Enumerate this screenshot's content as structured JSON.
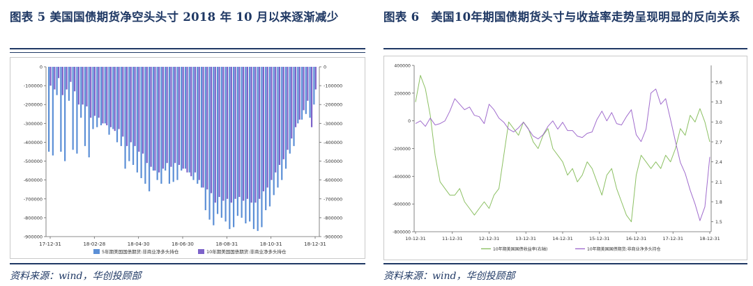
{
  "figures": [
    {
      "title": "图表 5 美国国债期货净空头头寸 2018 年 10 月以来逐渐减少",
      "source": "资料来源：wind，华创投顾部",
      "chart_data": {
        "type": "bar",
        "x_ticks": [
          "17-12-31",
          "18-02-28",
          "18-04-30",
          "18-06-30",
          "18-08-31",
          "18-10-31",
          "18-12-31"
        ],
        "y_ticks": [
          "0",
          "-100000",
          "-200000",
          "-300000",
          "-400000",
          "-500000",
          "-600000",
          "-700000",
          "-800000",
          "-900000"
        ],
        "ylim": [
          -900000,
          0
        ],
        "legend_position": "bottom",
        "series": [
          {
            "name": "5年期美国国债期货:非商业净多头持仓",
            "color": "#5b8fd6",
            "values": [
              -450000,
              -470000,
              -150000,
              -450000,
              -500000,
              -180000,
              -440000,
              -460000,
              -270000,
              -420000,
              -480000,
              -330000,
              -320000,
              -310000,
              -300000,
              -360000,
              -330000,
              -400000,
              -420000,
              -540000,
              -500000,
              -520000,
              -560000,
              -590000,
              -620000,
              -660000,
              -550000,
              -600000,
              -620000,
              -550000,
              -620000,
              -610000,
              -600000,
              -550000,
              -540000,
              -560000,
              -600000,
              -620000,
              -640000,
              -760000,
              -810000,
              -840000,
              -780000,
              -800000,
              -820000,
              -860000,
              -850000,
              -790000,
              -800000,
              -830000,
              -820000,
              -860000,
              -870000,
              -850000,
              -760000,
              -740000,
              -680000,
              -640000,
              -600000,
              -540000,
              -460000,
              -420000,
              -300000,
              -280000,
              -250000,
              -270000,
              -200000
            ]
          },
          {
            "name": "10年期美国国债期货:非商业净多头持仓",
            "color": "#7d63c9",
            "values": [
              -100000,
              -120000,
              -60000,
              -150000,
              -120000,
              -80000,
              -130000,
              -200000,
              -200000,
              -210000,
              -270000,
              -260000,
              -270000,
              -300000,
              -310000,
              -320000,
              -340000,
              -330000,
              -370000,
              -420000,
              -400000,
              -420000,
              -450000,
              -460000,
              -510000,
              -530000,
              -550000,
              -560000,
              -540000,
              -510000,
              -530000,
              -510000,
              -520000,
              -540000,
              -560000,
              -580000,
              -560000,
              -600000,
              -640000,
              -650000,
              -670000,
              -720000,
              -690000,
              -710000,
              -700000,
              -720000,
              -700000,
              -690000,
              -710000,
              -700000,
              -720000,
              -720000,
              -700000,
              -660000,
              -640000,
              -600000,
              -560000,
              -520000,
              -490000,
              -440000,
              -380000,
              -320000,
              -280000,
              -230000,
              -180000,
              -320000,
              -120000
            ]
          }
        ]
      }
    },
    {
      "title": "图表 6　美国10年期国债期货头寸与收益率走势呈现明显的反向关系",
      "source": "资料来源：wind，华创投顾部",
      "chart_data": {
        "type": "line",
        "x_ticks": [
          "10-12-31",
          "11-12-31",
          "12-12-31",
          "13-12-31",
          "14-12-31",
          "15-12-31",
          "16-12-31",
          "17-12-31",
          "18-12-31"
        ],
        "y_left_ticks": [
          "400000",
          "200000",
          "0",
          "-200000",
          "-400000",
          "-600000",
          "-800000"
        ],
        "y_right_ticks": [
          "3.6",
          "3.3",
          "3.0",
          "2.7",
          "2.4",
          "2.1",
          "1.8",
          "1.5"
        ],
        "ylim_left": [
          -800000,
          400000
        ],
        "ylim_right": [
          1.35,
          3.85
        ],
        "legend_position": "bottom",
        "series": [
          {
            "name": "10年期美国国债收益率(右轴)",
            "color": "#8cc063",
            "axis": "right",
            "values": [
              3.3,
              3.7,
              3.5,
              3.1,
              2.5,
              2.1,
              2.0,
              1.9,
              1.9,
              2.0,
              1.8,
              1.7,
              1.6,
              1.7,
              1.8,
              1.7,
              1.9,
              2.0,
              2.5,
              3.0,
              2.9,
              2.8,
              3.0,
              2.9,
              2.7,
              2.6,
              2.8,
              2.9,
              2.6,
              2.5,
              2.4,
              2.2,
              2.3,
              2.1,
              2.2,
              2.4,
              2.3,
              2.1,
              1.9,
              2.2,
              2.3,
              2.0,
              1.8,
              1.6,
              1.5,
              2.2,
              2.5,
              2.4,
              2.3,
              2.4,
              2.3,
              2.5,
              2.4,
              2.6,
              2.9,
              2.8,
              3.1,
              3.0,
              3.2,
              3.0,
              2.7
            ]
          },
          {
            "name": "10年期美国国债期货:非商业净多头持仓",
            "color": "#a06ccd",
            "axis": "left",
            "values": [
              -20000,
              0,
              -40000,
              20000,
              -30000,
              -20000,
              0,
              70000,
              160000,
              120000,
              80000,
              100000,
              40000,
              30000,
              -20000,
              120000,
              80000,
              20000,
              -10000,
              -60000,
              -80000,
              -50000,
              -10000,
              -60000,
              -110000,
              -130000,
              -100000,
              -40000,
              0,
              -60000,
              -10000,
              -70000,
              -70000,
              -110000,
              -120000,
              -90000,
              -80000,
              10000,
              70000,
              0,
              60000,
              -20000,
              -30000,
              30000,
              80000,
              -100000,
              -150000,
              -60000,
              200000,
              230000,
              120000,
              160000,
              10000,
              -150000,
              -300000,
              -380000,
              -500000,
              -600000,
              -720000,
              -620000,
              -260000
            ]
          }
        ]
      }
    }
  ]
}
